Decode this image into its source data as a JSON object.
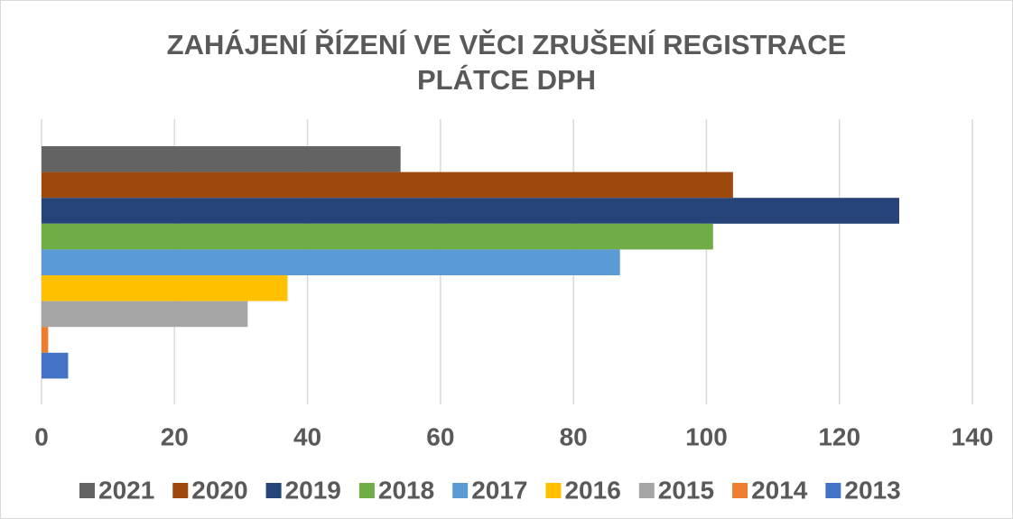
{
  "chart_data": {
    "type": "bar",
    "orientation": "horizontal",
    "title": [
      "ZAHÁJENÍ ŘÍZENÍ VE VĚCI ZRUŠENÍ REGISTRACE",
      "PLÁTCE DPH"
    ],
    "series": [
      {
        "name": "2021",
        "color": "#636363",
        "values": [
          54
        ]
      },
      {
        "name": "2020",
        "color": "#9e480e",
        "values": [
          104
        ]
      },
      {
        "name": "2019",
        "color": "#264478",
        "values": [
          129
        ]
      },
      {
        "name": "2018",
        "color": "#70ad47",
        "values": [
          101
        ]
      },
      {
        "name": "2017",
        "color": "#5b9bd5",
        "values": [
          87
        ]
      },
      {
        "name": "2016",
        "color": "#ffc000",
        "values": [
          37
        ]
      },
      {
        "name": "2015",
        "color": "#a5a5a5",
        "values": [
          31
        ]
      },
      {
        "name": "2014",
        "color": "#ed7d31",
        "values": [
          1
        ]
      },
      {
        "name": "2013",
        "color": "#4472c4",
        "values": [
          4
        ]
      }
    ],
    "xlim": [
      0,
      140
    ],
    "xticks": [
      0,
      20,
      40,
      60,
      80,
      100,
      120,
      140
    ],
    "grid": true,
    "legend": "bottom"
  }
}
